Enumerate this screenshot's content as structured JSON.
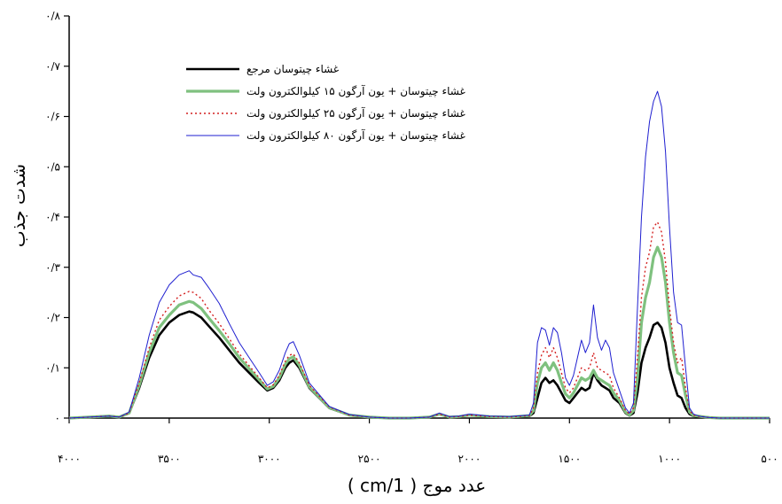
{
  "chart_data": {
    "type": "line",
    "title": "",
    "xlabel": "عدد موج ( 1/cm )",
    "ylabel": "شدت جذب",
    "xlim": [
      4000,
      500
    ],
    "ylim": [
      0,
      0.8
    ],
    "x_reversed": true,
    "x_ticks": [
      4000,
      3500,
      3000,
      2500,
      2000,
      1500,
      1000,
      500
    ],
    "x_tick_labels": [
      "۴۰۰۰",
      "۳۵۰۰",
      "۳۰۰۰",
      "۲۵۰۰",
      "۲۰۰۰",
      "۱۵۰۰",
      "۱۰۰۰",
      "۵۰۰"
    ],
    "y_ticks": [
      0,
      0.1,
      0.2,
      0.3,
      0.4,
      0.5,
      0.6,
      0.7,
      0.8
    ],
    "y_tick_labels": [
      "۰",
      "۰/۱",
      "۰/۲",
      "۰/۳",
      "۰/۴",
      "۰/۵",
      "۰/۶",
      "۰/۷",
      "۰/۸"
    ],
    "grid": false,
    "legend_position": "top-left",
    "series": [
      {
        "name": "غشاء چیتوسان مرجع",
        "color": "#000000",
        "style": "solid",
        "x": [
          4000,
          3900,
          3800,
          3750,
          3700,
          3650,
          3600,
          3550,
          3500,
          3450,
          3400,
          3380,
          3340,
          3300,
          3250,
          3200,
          3150,
          3100,
          3050,
          3010,
          2980,
          2950,
          2920,
          2900,
          2880,
          2850,
          2800,
          2700,
          2600,
          2500,
          2400,
          2300,
          2200,
          2150,
          2100,
          2050,
          2000,
          1900,
          1800,
          1700,
          1680,
          1660,
          1640,
          1620,
          1600,
          1580,
          1560,
          1540,
          1520,
          1500,
          1480,
          1460,
          1440,
          1420,
          1400,
          1380,
          1360,
          1340,
          1320,
          1300,
          1280,
          1250,
          1220,
          1200,
          1180,
          1160,
          1140,
          1120,
          1100,
          1080,
          1060,
          1040,
          1020,
          1000,
          980,
          960,
          940,
          920,
          900,
          880,
          860,
          840,
          820,
          800,
          750,
          700,
          650,
          600,
          550,
          500
        ],
        "y": [
          0.0,
          0.002,
          0.004,
          0.002,
          0.01,
          0.06,
          0.12,
          0.165,
          0.19,
          0.205,
          0.212,
          0.21,
          0.2,
          0.182,
          0.16,
          0.135,
          0.11,
          0.09,
          0.07,
          0.055,
          0.06,
          0.075,
          0.1,
          0.11,
          0.115,
          0.1,
          0.06,
          0.02,
          0.006,
          0.002,
          0.0,
          0.0,
          0.002,
          0.008,
          0.002,
          0.003,
          0.006,
          0.003,
          0.002,
          0.004,
          0.01,
          0.04,
          0.07,
          0.08,
          0.07,
          0.075,
          0.065,
          0.05,
          0.035,
          0.03,
          0.04,
          0.05,
          0.06,
          0.055,
          0.06,
          0.09,
          0.075,
          0.065,
          0.06,
          0.055,
          0.04,
          0.03,
          0.01,
          0.005,
          0.01,
          0.05,
          0.11,
          0.14,
          0.16,
          0.185,
          0.19,
          0.18,
          0.15,
          0.1,
          0.07,
          0.045,
          0.04,
          0.02,
          0.008,
          0.004,
          0.003,
          0.003,
          0.002,
          0.001,
          0.0,
          0.0,
          0.0,
          0.0,
          0.0,
          0.0
        ]
      },
      {
        "name": "غشاء چیتوسان + یون آرگون ۱۵ کیلوالکترون ولت",
        "color": "#7fc17f",
        "style": "solid",
        "x": [
          4000,
          3900,
          3800,
          3750,
          3700,
          3650,
          3600,
          3550,
          3500,
          3450,
          3400,
          3380,
          3340,
          3300,
          3250,
          3200,
          3150,
          3100,
          3050,
          3010,
          2980,
          2950,
          2920,
          2900,
          2880,
          2850,
          2800,
          2700,
          2600,
          2500,
          2400,
          2300,
          2200,
          2150,
          2100,
          2050,
          2000,
          1900,
          1800,
          1700,
          1680,
          1660,
          1640,
          1620,
          1600,
          1580,
          1560,
          1540,
          1520,
          1500,
          1480,
          1460,
          1440,
          1420,
          1400,
          1380,
          1360,
          1340,
          1320,
          1300,
          1280,
          1250,
          1220,
          1200,
          1180,
          1160,
          1140,
          1120,
          1100,
          1080,
          1060,
          1040,
          1020,
          1000,
          980,
          960,
          940,
          920,
          900,
          880,
          860,
          840,
          820,
          800,
          750,
          700,
          650,
          600,
          550,
          500
        ],
        "y": [
          0.0,
          0.002,
          0.004,
          0.002,
          0.01,
          0.065,
          0.13,
          0.18,
          0.205,
          0.225,
          0.232,
          0.23,
          0.218,
          0.198,
          0.174,
          0.148,
          0.12,
          0.098,
          0.076,
          0.058,
          0.063,
          0.08,
          0.107,
          0.118,
          0.122,
          0.105,
          0.062,
          0.021,
          0.006,
          0.002,
          0.0,
          0.0,
          0.002,
          0.008,
          0.002,
          0.003,
          0.006,
          0.003,
          0.002,
          0.005,
          0.015,
          0.07,
          0.1,
          0.11,
          0.095,
          0.11,
          0.095,
          0.07,
          0.048,
          0.04,
          0.05,
          0.065,
          0.08,
          0.075,
          0.08,
          0.095,
          0.08,
          0.075,
          0.07,
          0.065,
          0.05,
          0.035,
          0.012,
          0.006,
          0.015,
          0.08,
          0.19,
          0.24,
          0.27,
          0.32,
          0.34,
          0.32,
          0.27,
          0.19,
          0.13,
          0.09,
          0.085,
          0.045,
          0.012,
          0.005,
          0.004,
          0.003,
          0.002,
          0.001,
          0.0,
          0.0,
          0.0,
          0.0,
          0.0,
          0.0
        ]
      },
      {
        "name": "غشاء چیتوسان + یون آرگون ۲۵ کیلوالکترون ولت",
        "color": "#d42020",
        "style": "dotted",
        "x": [
          4000,
          3900,
          3800,
          3750,
          3700,
          3650,
          3600,
          3550,
          3500,
          3450,
          3400,
          3380,
          3340,
          3300,
          3250,
          3200,
          3150,
          3100,
          3050,
          3010,
          2980,
          2950,
          2920,
          2900,
          2880,
          2850,
          2800,
          2700,
          2600,
          2500,
          2400,
          2300,
          2200,
          2150,
          2100,
          2050,
          2000,
          1900,
          1800,
          1700,
          1680,
          1660,
          1640,
          1620,
          1600,
          1580,
          1560,
          1540,
          1520,
          1500,
          1480,
          1460,
          1440,
          1420,
          1400,
          1380,
          1360,
          1340,
          1320,
          1300,
          1280,
          1250,
          1220,
          1200,
          1180,
          1160,
          1140,
          1120,
          1100,
          1080,
          1060,
          1040,
          1020,
          1000,
          980,
          960,
          940,
          920,
          900,
          880,
          860,
          840,
          820,
          800,
          750,
          700,
          650,
          600,
          550,
          500
        ],
        "y": [
          0.0,
          0.002,
          0.004,
          0.002,
          0.01,
          0.07,
          0.14,
          0.195,
          0.222,
          0.243,
          0.252,
          0.25,
          0.238,
          0.214,
          0.188,
          0.158,
          0.128,
          0.104,
          0.08,
          0.06,
          0.066,
          0.085,
          0.113,
          0.125,
          0.128,
          0.11,
          0.065,
          0.022,
          0.006,
          0.002,
          0.0,
          0.0,
          0.002,
          0.008,
          0.002,
          0.003,
          0.006,
          0.003,
          0.002,
          0.005,
          0.02,
          0.09,
          0.125,
          0.14,
          0.12,
          0.14,
          0.12,
          0.09,
          0.06,
          0.05,
          0.06,
          0.08,
          0.1,
          0.095,
          0.1,
          0.13,
          0.1,
          0.095,
          0.09,
          0.085,
          0.06,
          0.04,
          0.015,
          0.008,
          0.02,
          0.12,
          0.24,
          0.3,
          0.33,
          0.38,
          0.39,
          0.37,
          0.31,
          0.22,
          0.15,
          0.11,
          0.12,
          0.06,
          0.015,
          0.006,
          0.004,
          0.003,
          0.002,
          0.001,
          0.0,
          0.0,
          0.0,
          0.0,
          0.0,
          0.0
        ]
      },
      {
        "name": "غشاء چیتوسان + یون آرگون ۸۰ کیلوالکترون ولت",
        "color": "#1f1fd0",
        "style": "solid",
        "x": [
          4000,
          3900,
          3800,
          3750,
          3700,
          3650,
          3600,
          3550,
          3500,
          3450,
          3400,
          3380,
          3340,
          3300,
          3250,
          3200,
          3150,
          3100,
          3050,
          3010,
          2980,
          2950,
          2920,
          2900,
          2880,
          2850,
          2800,
          2700,
          2600,
          2500,
          2400,
          2300,
          2200,
          2150,
          2100,
          2050,
          2000,
          1900,
          1800,
          1700,
          1680,
          1660,
          1640,
          1620,
          1600,
          1580,
          1560,
          1540,
          1520,
          1500,
          1480,
          1460,
          1440,
          1420,
          1400,
          1380,
          1360,
          1340,
          1320,
          1300,
          1280,
          1250,
          1220,
          1200,
          1180,
          1160,
          1140,
          1120,
          1100,
          1080,
          1060,
          1040,
          1020,
          1000,
          980,
          960,
          940,
          920,
          900,
          880,
          860,
          840,
          820,
          800,
          750,
          700,
          650,
          600,
          550,
          500
        ],
        "y": [
          0.0,
          0.002,
          0.004,
          0.002,
          0.012,
          0.08,
          0.165,
          0.23,
          0.265,
          0.285,
          0.293,
          0.285,
          0.28,
          0.258,
          0.228,
          0.188,
          0.15,
          0.12,
          0.09,
          0.065,
          0.072,
          0.095,
          0.13,
          0.148,
          0.152,
          0.125,
          0.07,
          0.023,
          0.007,
          0.002,
          0.0,
          0.0,
          0.002,
          0.01,
          0.003,
          0.004,
          0.008,
          0.004,
          0.003,
          0.006,
          0.03,
          0.15,
          0.18,
          0.175,
          0.145,
          0.18,
          0.17,
          0.13,
          0.08,
          0.065,
          0.085,
          0.12,
          0.155,
          0.13,
          0.15,
          0.225,
          0.16,
          0.135,
          0.155,
          0.14,
          0.09,
          0.055,
          0.02,
          0.01,
          0.03,
          0.22,
          0.4,
          0.52,
          0.59,
          0.63,
          0.65,
          0.62,
          0.53,
          0.38,
          0.25,
          0.19,
          0.185,
          0.1,
          0.02,
          0.008,
          0.005,
          0.003,
          0.002,
          0.001,
          0.0,
          0.0,
          0.0,
          0.0,
          0.0,
          0.0
        ]
      }
    ]
  }
}
